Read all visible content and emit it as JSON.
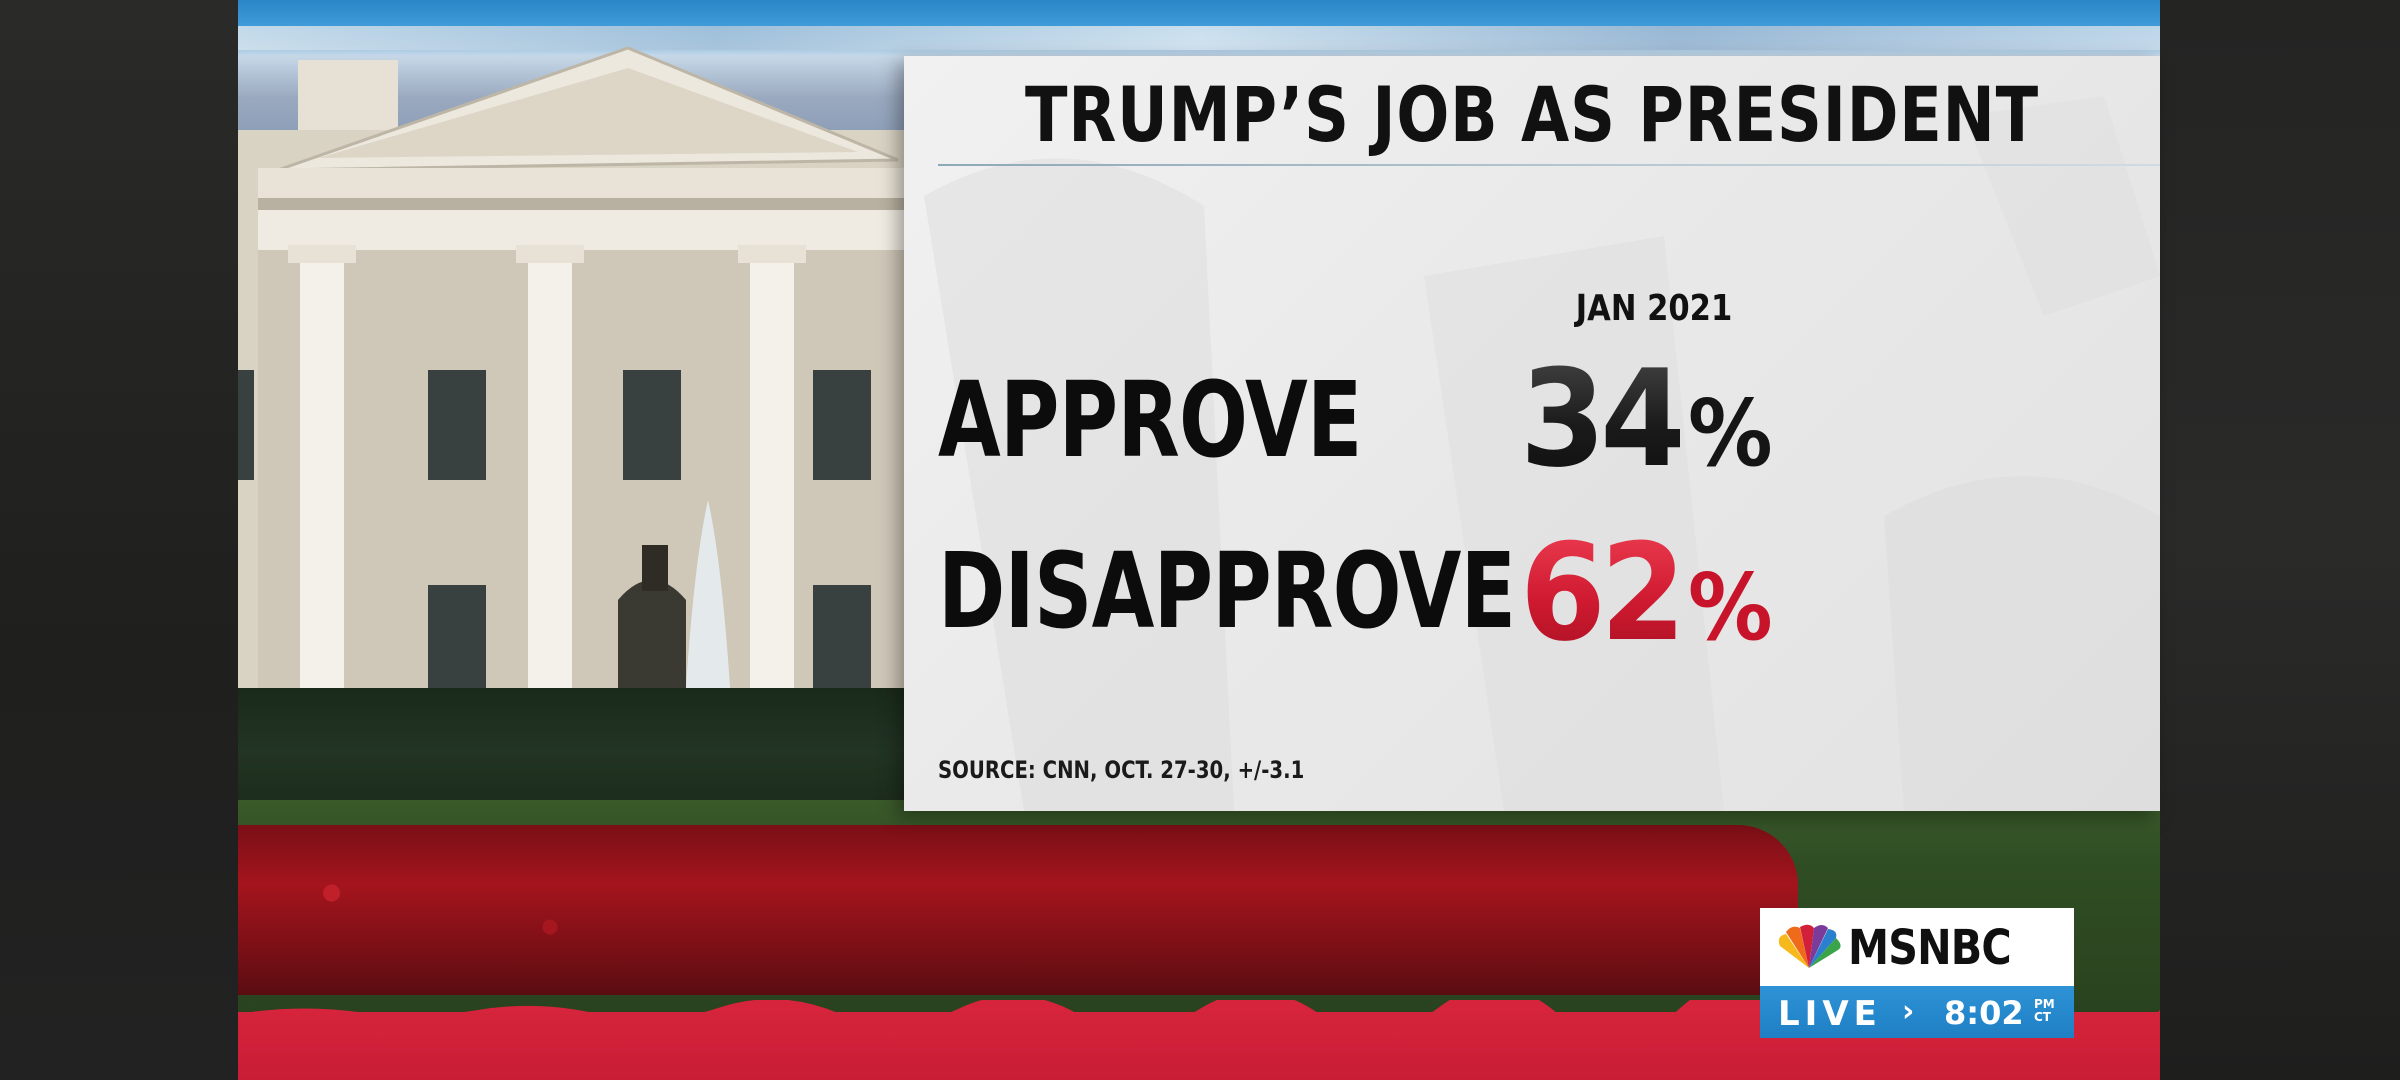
{
  "graphic": {
    "title": "TRUMP’S JOB AS PRESIDENT",
    "column_header": "JAN 2021",
    "rows": [
      {
        "label": "APPROVE",
        "value": "34",
        "unit": "%",
        "color": "#151515"
      },
      {
        "label": "DISAPPROVE",
        "value": "62",
        "unit": "%",
        "color": "#d01a30"
      }
    ],
    "source": "SOURCE: CNN, OCT. 27-30, +/-3.1"
  },
  "bug": {
    "brand": "MSNBC",
    "status": "LIVE",
    "separator": "›",
    "time": "8:02",
    "meridiem": "PM",
    "timezone": "CT",
    "brand_color": "#101010",
    "live_bar_color": "#2588cd"
  },
  "colors": {
    "accent_red": "#d5243b",
    "panel_background": "#ececec"
  }
}
